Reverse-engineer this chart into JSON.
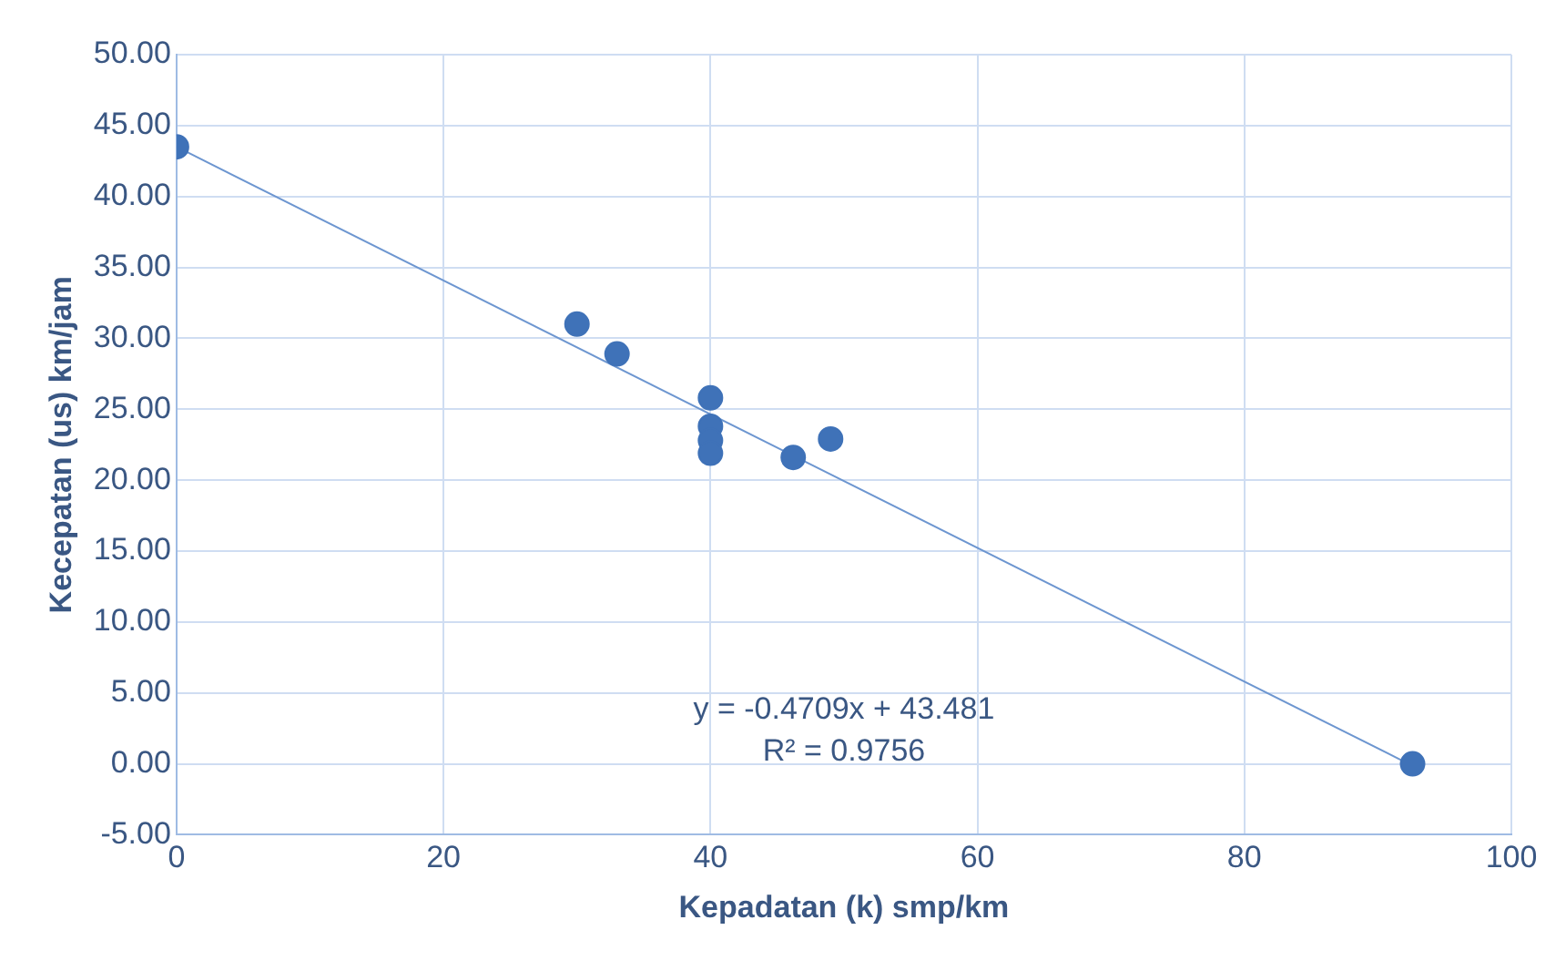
{
  "chart_data": {
    "type": "scatter",
    "xlabel": "Kepadatan (k) smp/km",
    "ylabel": "Kecepatan (us) km/jam",
    "xlim": [
      0,
      100
    ],
    "xticks": [
      0,
      20,
      40,
      60,
      80,
      100
    ],
    "ylim": [
      -5,
      50
    ],
    "yticks": [
      {
        "value": -5,
        "label": "-5.00"
      },
      {
        "value": 0,
        "label": "0.00"
      },
      {
        "value": 5,
        "label": "5.00"
      },
      {
        "value": 10,
        "label": "10.00"
      },
      {
        "value": 15,
        "label": "15.00"
      },
      {
        "value": 20,
        "label": "20.00"
      },
      {
        "value": 25,
        "label": "25.00"
      },
      {
        "value": 30,
        "label": "30.00"
      },
      {
        "value": 35,
        "label": "35.00"
      },
      {
        "value": 40,
        "label": "40.00"
      },
      {
        "value": 45,
        "label": "45.00"
      },
      {
        "value": 50,
        "label": "50.00"
      }
    ],
    "grid": true,
    "legend": false,
    "marker": "circle",
    "series": [
      {
        "color": "#3f72b8",
        "x": [
          0,
          30,
          33,
          40,
          40,
          40,
          40,
          46.2,
          49,
          92.6
        ],
        "values": [
          43.5,
          31,
          28.9,
          25.8,
          23.8,
          22.8,
          21.9,
          21.6,
          22.9,
          0
        ]
      },
      {
        "type": "line",
        "color": "#6d96d0",
        "marker": "none",
        "x": [
          0,
          92.3
        ],
        "values": [
          43.5,
          0
        ]
      }
    ],
    "annotations": [
      "y = -0.4709x + 43.481",
      "R² = 0.9756"
    ]
  }
}
